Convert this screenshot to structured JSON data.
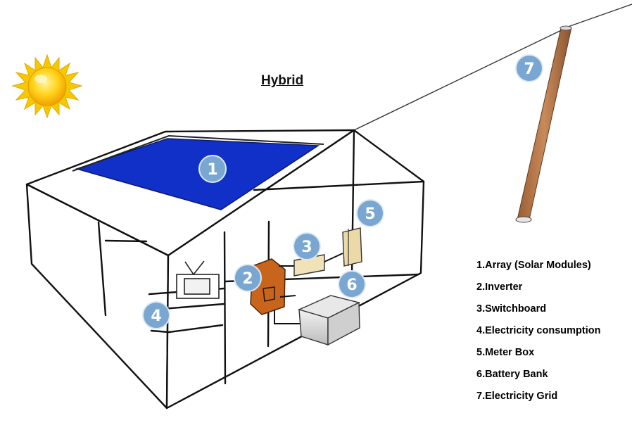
{
  "diagram": {
    "title": "Hybrid",
    "legend": [
      "1.Array (Solar Modules)",
      "2.Inverter",
      "3.Switchboard",
      "4.Electricity consumption",
      "5.Meter Box",
      "6.Battery Bank",
      "7.Electricity Grid"
    ],
    "badges": [
      "1",
      "2",
      "3",
      "4",
      "5",
      "6",
      "7"
    ],
    "colors": {
      "solar_panel": "#1030c8",
      "inverter": "#c8641c",
      "pole": "#b5784a",
      "badge": "#7aa6d2",
      "sun": "#f5c800"
    }
  }
}
